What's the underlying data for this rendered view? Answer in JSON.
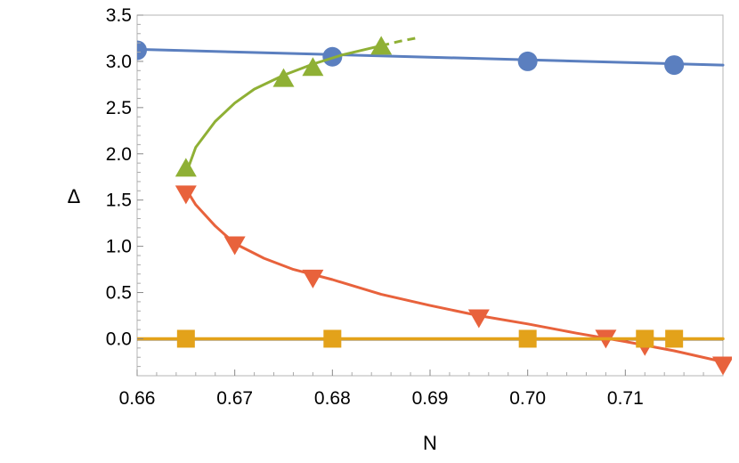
{
  "chart_data": {
    "type": "scatter",
    "xlabel": "N",
    "ylabel": "Δ",
    "xlim": [
      0.66,
      0.72
    ],
    "ylim": [
      -0.4,
      3.5
    ],
    "x_ticks": [
      "0.66",
      "0.67",
      "0.68",
      "0.69",
      "0.70",
      "0.71"
    ],
    "y_ticks": [
      "-0.0",
      "0.0",
      "0.5",
      "1.0",
      "1.5",
      "2.0",
      "2.5",
      "3.0",
      "3.5"
    ],
    "y_tick_values": [
      0.0,
      0.5,
      1.0,
      1.5,
      2.0,
      2.5,
      3.0,
      3.5
    ],
    "y_tick_text": [
      "0.0",
      "0.5",
      "1.0",
      "1.5",
      "2.0",
      "2.5",
      "3.0",
      "3.5"
    ],
    "grid": false,
    "series": [
      {
        "marker": "circle",
        "color": "#5b7fbf",
        "points": [
          [
            0.66,
            3.12
          ],
          [
            0.68,
            3.05
          ],
          [
            0.7,
            3.0
          ],
          [
            0.715,
            2.96
          ]
        ],
        "fit": [
          [
            0.66,
            3.13
          ],
          [
            0.72,
            2.96
          ]
        ],
        "fit_dashed": []
      },
      {
        "marker": "triangle-up",
        "color": "#8fb035",
        "points": [
          [
            0.665,
            1.83
          ],
          [
            0.675,
            2.8
          ],
          [
            0.678,
            2.92
          ],
          [
            0.685,
            3.15
          ]
        ],
        "fit": [
          [
            0.665,
            1.78
          ],
          [
            0.666,
            2.07
          ],
          [
            0.668,
            2.35
          ],
          [
            0.67,
            2.55
          ],
          [
            0.672,
            2.7
          ],
          [
            0.675,
            2.85
          ],
          [
            0.678,
            2.97
          ],
          [
            0.681,
            3.07
          ],
          [
            0.685,
            3.17
          ]
        ],
        "fit_dashed": [
          [
            0.685,
            3.17
          ],
          [
            0.687,
            3.22
          ],
          [
            0.689,
            3.26
          ]
        ]
      },
      {
        "marker": "triangle-down",
        "color": "#e8623c",
        "points": [
          [
            0.665,
            1.58
          ],
          [
            0.67,
            1.03
          ],
          [
            0.678,
            0.67
          ],
          [
            0.695,
            0.24
          ],
          [
            0.708,
            0.02
          ],
          [
            0.712,
            -0.06
          ],
          [
            0.72,
            -0.27
          ]
        ],
        "fit": [
          [
            0.665,
            1.62
          ],
          [
            0.666,
            1.45
          ],
          [
            0.668,
            1.22
          ],
          [
            0.67,
            1.03
          ],
          [
            0.673,
            0.87
          ],
          [
            0.676,
            0.75
          ],
          [
            0.68,
            0.64
          ],
          [
            0.685,
            0.48
          ],
          [
            0.69,
            0.36
          ],
          [
            0.695,
            0.25
          ],
          [
            0.7,
            0.16
          ],
          [
            0.705,
            0.06
          ],
          [
            0.71,
            -0.03
          ],
          [
            0.715,
            -0.13
          ],
          [
            0.72,
            -0.25
          ]
        ],
        "fit_dashed": []
      },
      {
        "marker": "square",
        "color": "#e3a21a",
        "points": [
          [
            0.665,
            0.0
          ],
          [
            0.68,
            0.0
          ],
          [
            0.7,
            0.0
          ],
          [
            0.712,
            0.0
          ],
          [
            0.715,
            0.0
          ]
        ],
        "fit": [
          [
            0.66,
            0.0
          ],
          [
            0.72,
            0.0
          ]
        ],
        "fit_dashed": []
      }
    ]
  }
}
